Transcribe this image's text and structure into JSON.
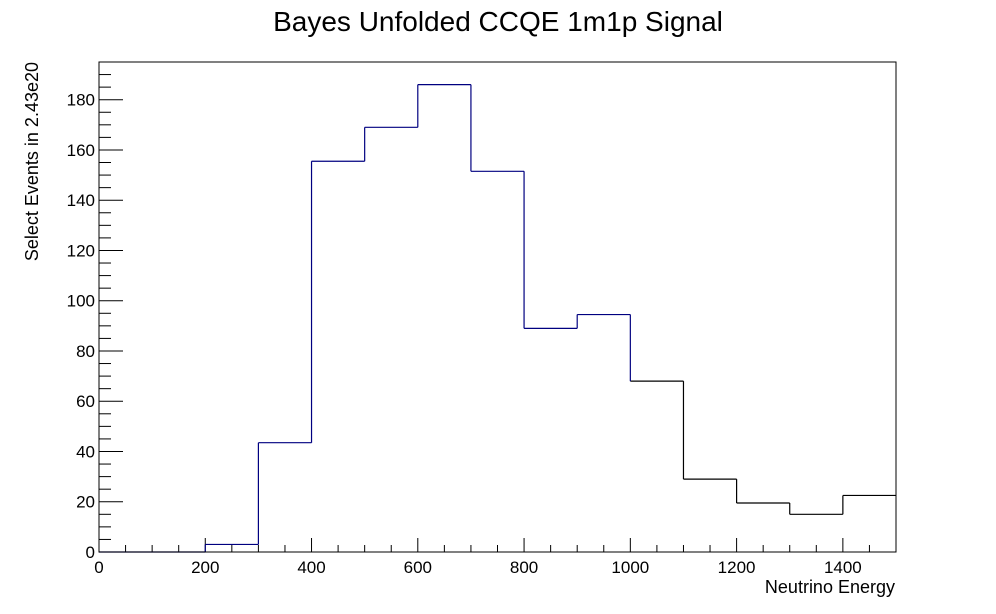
{
  "chart_data": {
    "type": "histogram",
    "title": "Bayes Unfolded CCQE 1m1p Signal",
    "xlabel": "Neutrino Energy",
    "ylabel": "Select Events in 2.43e20",
    "xlim": [
      0,
      1500
    ],
    "ylim": [
      0,
      195
    ],
    "bin_edges": [
      0,
      100,
      200,
      300,
      400,
      500,
      600,
      700,
      800,
      900,
      1000,
      1100,
      1200,
      1300,
      1400,
      1500
    ],
    "values": [
      0,
      0,
      3,
      43.5,
      155.5,
      169,
      186,
      151.5,
      89,
      94.5,
      68,
      29,
      19.5,
      15,
      22.5
    ],
    "x_ticks": [
      0,
      200,
      400,
      600,
      800,
      1000,
      1200,
      1400
    ],
    "x_minor_step": 50,
    "y_ticks": [
      0,
      20,
      40,
      60,
      80,
      100,
      120,
      140,
      160,
      180
    ],
    "y_minor_step": 5,
    "grid": false,
    "legend": "none",
    "colors": {
      "line_low": "#000080",
      "line_high": "#000000",
      "frame": "#000000"
    }
  }
}
